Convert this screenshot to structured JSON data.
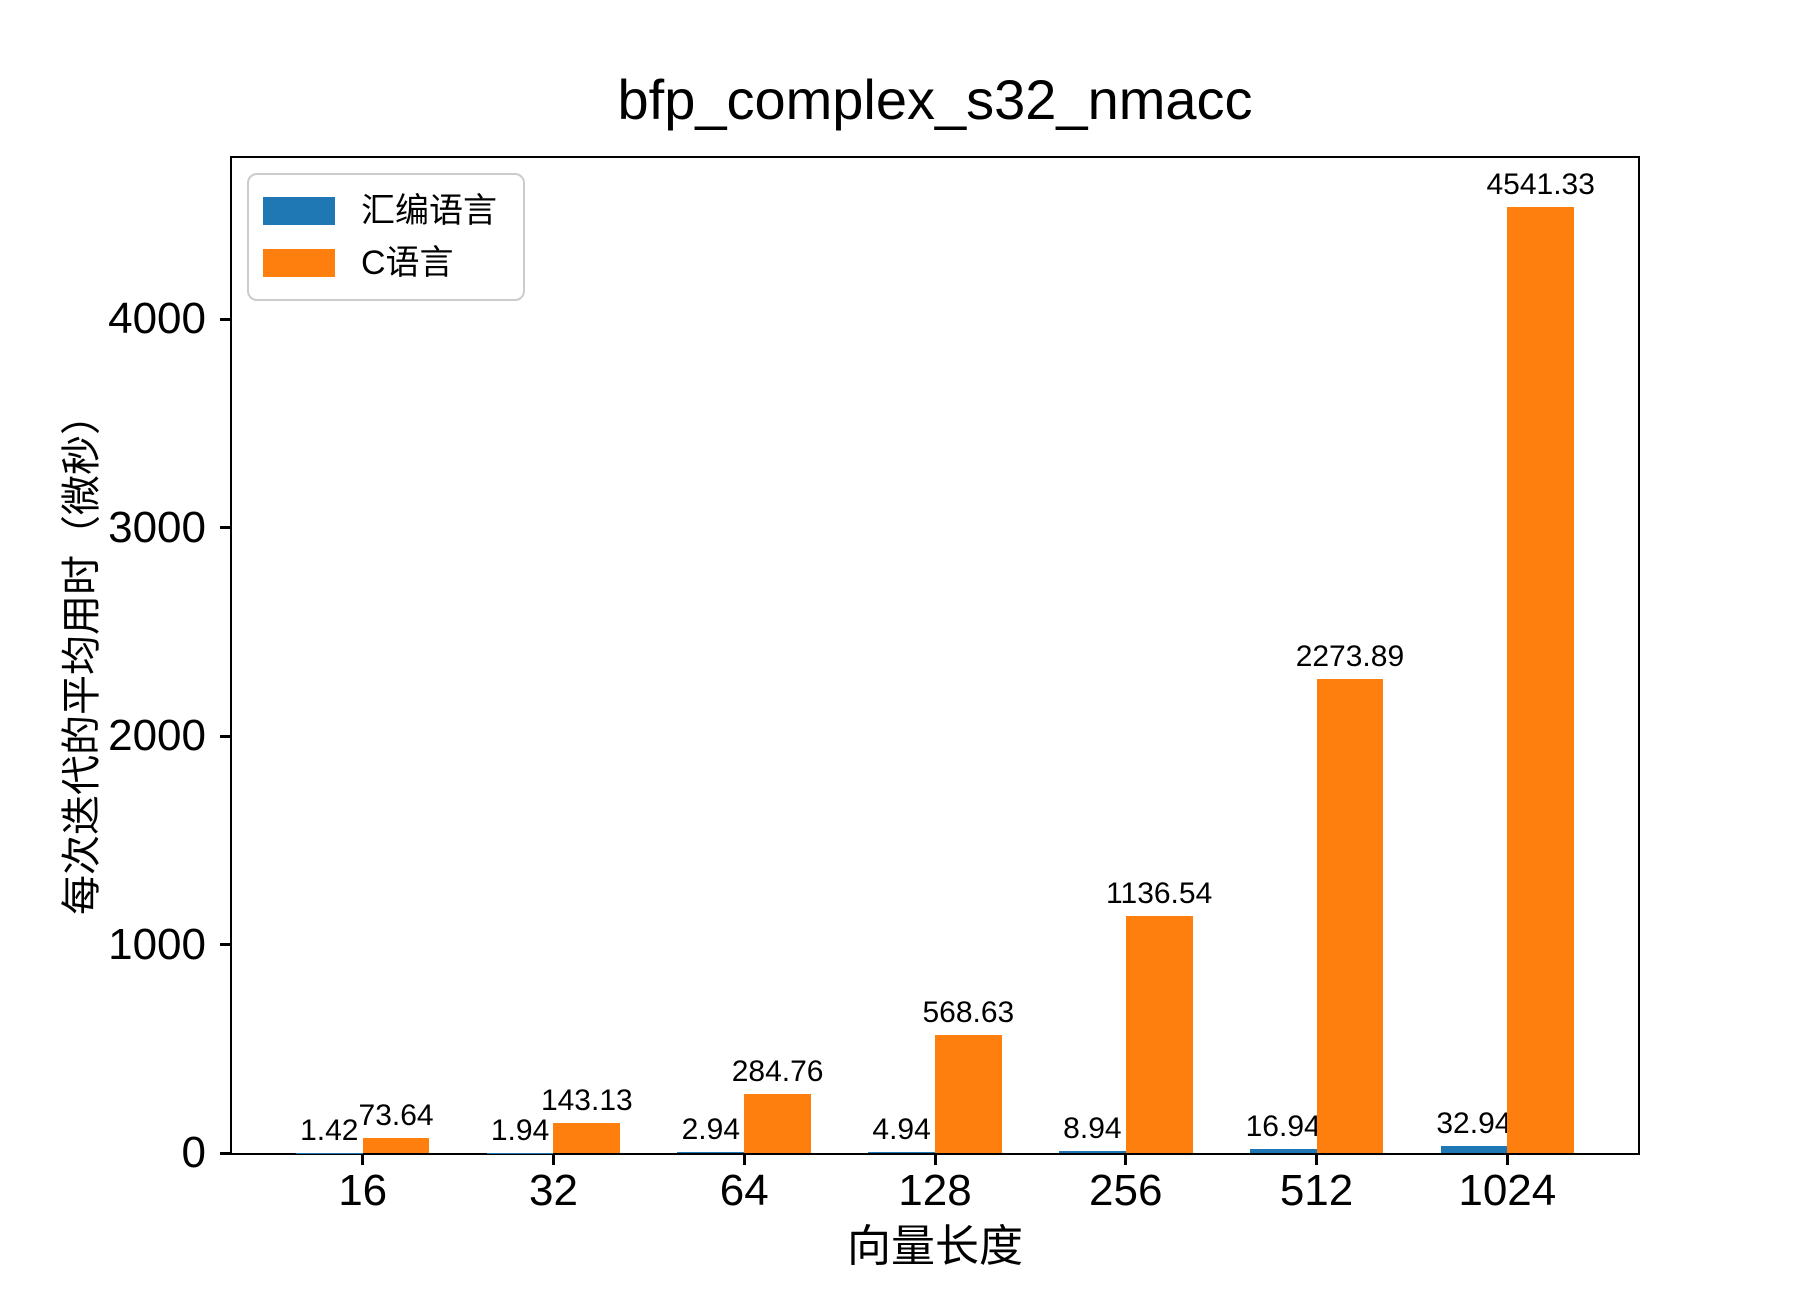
{
  "chart_data": {
    "type": "bar",
    "title": "bfp_complex_s32_nmacc",
    "xlabel": "向量长度",
    "ylabel": "每次迭代的平均用时（微秒）",
    "categories": [
      "16",
      "32",
      "64",
      "128",
      "256",
      "512",
      "1024"
    ],
    "series": [
      {
        "name": "汇编语言",
        "color": "#1f77b4",
        "values": [
          1.42,
          1.94,
          2.94,
          4.94,
          8.94,
          16.94,
          32.94
        ]
      },
      {
        "name": "C语言",
        "color": "#ff7f0e",
        "values": [
          73.64,
          143.13,
          284.76,
          568.63,
          1136.54,
          2273.89,
          4541.33
        ]
      }
    ],
    "yticks": [
      0,
      1000,
      2000,
      3000,
      4000
    ],
    "ylim": [
      0,
      4775
    ],
    "bar_value_labels": true,
    "value_label_decimals": 2,
    "legend_position": "upper-left",
    "grid": false,
    "background_color": "#ffffff",
    "spine_color": "#000000"
  }
}
